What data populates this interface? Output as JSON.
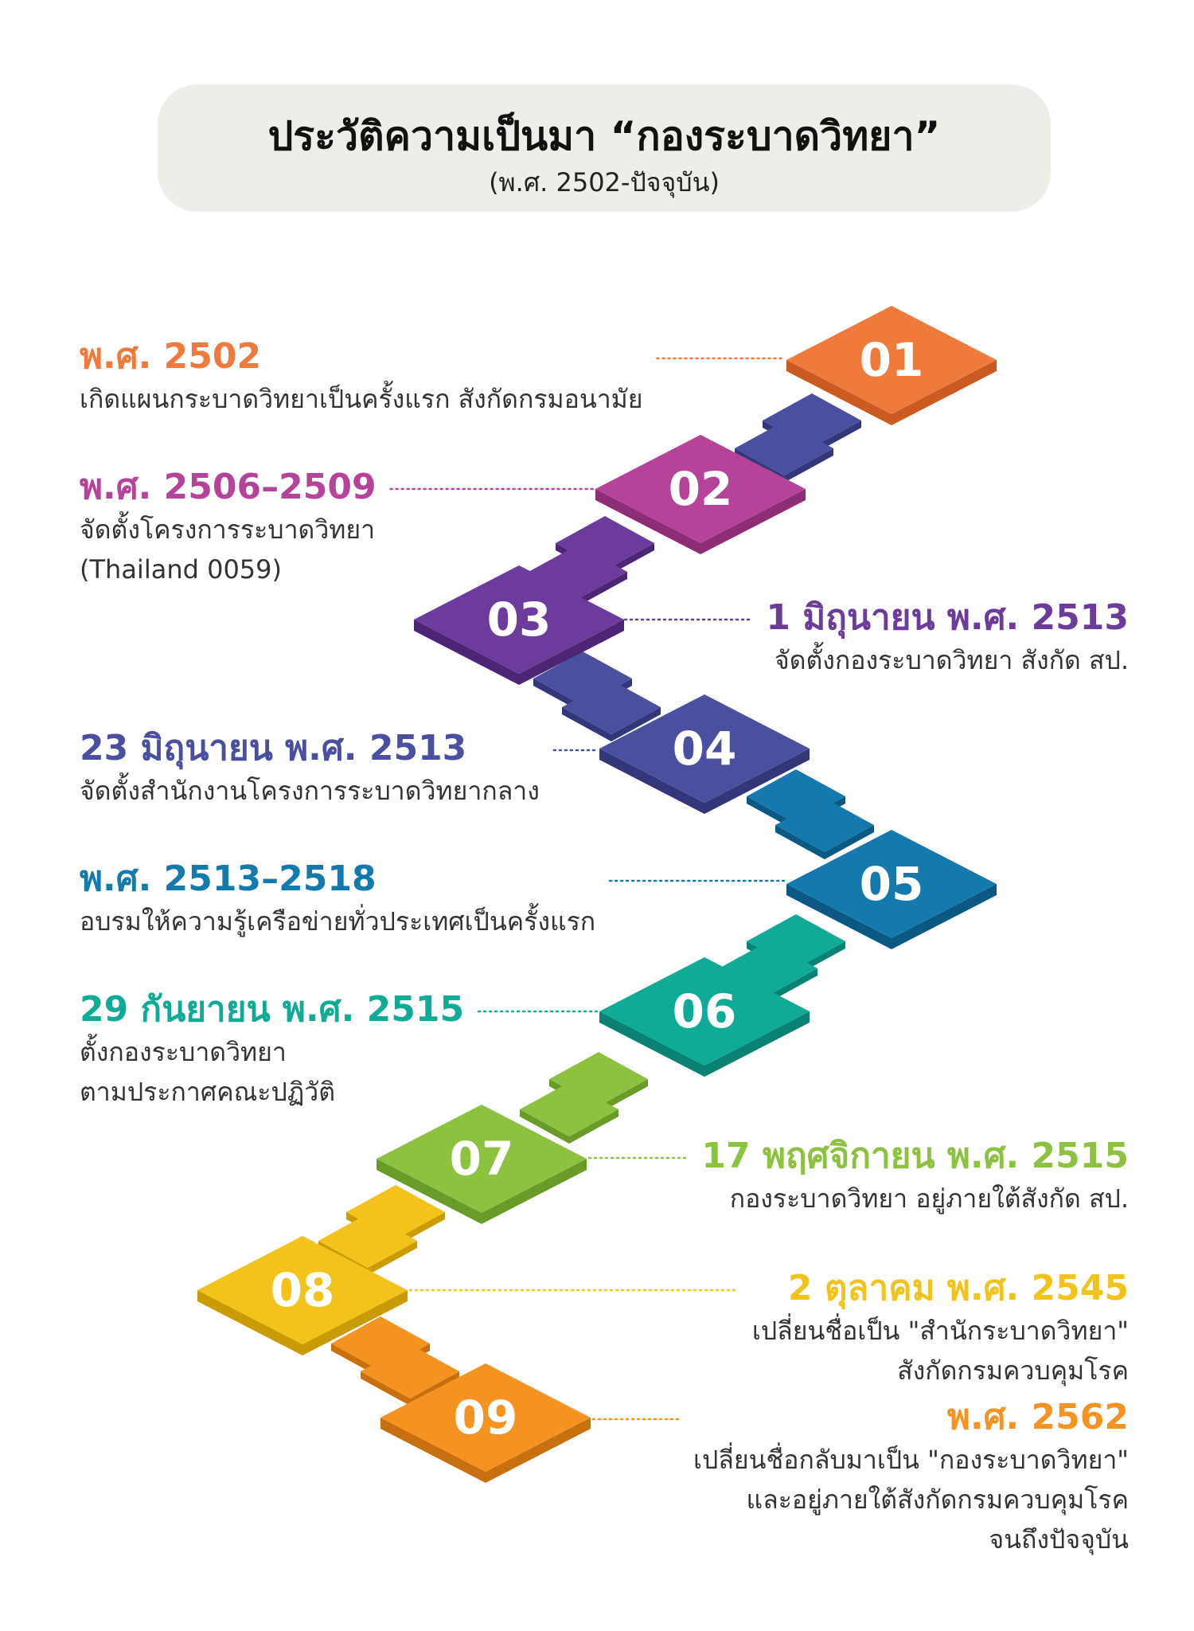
{
  "header": {
    "title": "ประวัติความเป็นมา “กองระบาดวิทยา”",
    "subtitle": "(พ.ศ. 2502-ปัจจุบัน)"
  },
  "events": [
    {
      "number": "01",
      "year": "พ.ศ. 2502",
      "color": "#f07a3b",
      "dark": "#c85a22",
      "lines": [
        "เกิดแผนกระบาดวิทยาเป็นครั้งแรก สังกัดกรมอนามัย"
      ]
    },
    {
      "number": "02",
      "year": "พ.ศ. 2506–2509",
      "color": "#b6439a",
      "dark": "#8c2d75",
      "lines": [
        "จัดตั้งโครงการระบาดวิทยา",
        "(Thailand 0059)"
      ]
    },
    {
      "number": "03",
      "year": "1 มิถุนายน พ.ศ. 2513",
      "color": "#6c3b9c",
      "dark": "#4d2575",
      "lines": [
        "จัดตั้งกองระบาดวิทยา สังกัด สป."
      ]
    },
    {
      "number": "04",
      "year": "23 มิถุนายน พ.ศ. 2513",
      "color": "#4b4f9f",
      "dark": "#33377a",
      "lines": [
        "จัดตั้งสำนักงานโครงการระบาดวิทยากลาง"
      ]
    },
    {
      "number": "05",
      "year": "พ.ศ. 2513–2518",
      "color": "#1479ad",
      "dark": "#0b5982",
      "lines": [
        "อบรมให้ความรู้เครือข่ายทั่วประเทศเป็นครั้งแรก"
      ]
    },
    {
      "number": "06",
      "year": "29 กันยายน พ.ศ. 2515",
      "color": "#10ab97",
      "dark": "#0a8273",
      "lines": [
        "ตั้งกองระบาดวิทยา",
        "ตามประกาศคณะปฏิวัติ"
      ]
    },
    {
      "number": "07",
      "year": "17 พฤศจิกายน พ.ศ. 2515",
      "color": "#8cc23f",
      "dark": "#6a9a27",
      "lines": [
        "กองระบาดวิทยา อยู่ภายใต้สังกัด สป."
      ]
    },
    {
      "number": "08",
      "year": "2 ตุลาคม พ.ศ. 2545",
      "color": "#f3c31c",
      "dark": "#c99c06",
      "lines": [
        "เปลี่ยนชื่อเป็น \"สำนักระบาดวิทยา\"",
        "สังกัดกรมควบคุมโรค"
      ]
    },
    {
      "number": "09",
      "year": "พ.ศ. 2562",
      "color": "#f49320",
      "dark": "#c87010",
      "lines": [
        "เปลี่ยนชื่อกลับมาเป็น \"กองระบาดวิทยา\"",
        "และอยู่ภายใต้สังกัดกรมควบคุมโรค",
        "จนถึงปัจจุบัน"
      ]
    }
  ]
}
